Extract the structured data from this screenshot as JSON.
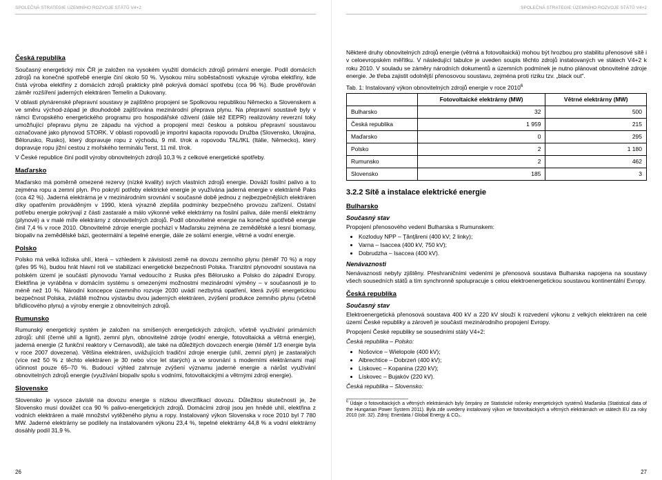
{
  "doc_header": "SPOLEČNÁ STRATEGIE ÚZEMNÍHO ROZVOJE STÁTŮ V4+2",
  "left": {
    "pagenum": "26",
    "cr": {
      "title": "Česká republika",
      "p1": "Současný energetický mix ČR je založen na vysokém využití domácích zdrojů primární energie. Podíl domácích zdrojů na konečné spotřebě energie činí okolo 50 %. Vysokou míru soběstačnosti vykazuje výroba elektřiny, kde čistá výroba elektřiny z domácích zdrojů prakticky plně pokrývá domácí spotřebu (cca 96 %). Bude prověřován záměr rozšíření jaderných elektráren Temelín a Dukovany.",
      "p2": "V oblasti plynárenské přepravní soustavy je zajištěno propojení se Spolkovou republikou Německo a Slovenskem a ve směru východ-západ je dlouhodobě zajišťována mezinárodní přeprava plynu. Na přepravní soustavě byly v rámci Evropského energetického programu pro hospodářské oživení (dále též EEPR) realizovány reverzní toky umožňující přepravu plynu ze západu na východ a propojení mezi českou a polskou přepravní soustavou označované jako plynovod STORK. V oblasti ropovodů je importní kapacita ropovodu Družba (Slovensko, Ukrajina, Bělorusko, Rusko), který dopravuje ropu z východu, 9 mil. t/rok a ropovodu TAL/IKL (Itálie, Německo), který dopravuje ropu jižní cestou z mořského terminálu Terst, 11 mil. t/rok.",
      "p3": "V České republice činí podíl výroby obnovitelných zdrojů 10,3 % z celkové energetické spotřeby."
    },
    "hu": {
      "title": "Maďarsko",
      "p1": "Maďarsko má poměrně omezené rezervy (nízké kvality) svých vlastních zdrojů energie. Dováží fosilní palivo a to zejména ropu a zemní plyn. Pro pokrytí potřeby elektrické energie je využívána jaderná energie v elektrárně Paks (cca 42 %). Jaderná elektrárna je v mezinárodním srovnání v současné době jednou z nejbezpečnějších elektráren díky opatřením prováděným v 1990, která výrazně zlepšila podmínky bezpečného provozu zařízení. Ostatní potřebu energie pokrývají z části zastaralé a málo výkonné velké elektrárny na fosilní paliva, dále menší elektrárny (plynové) a v malé míře elektrárny z obnovitelných zdrojů. Podíl obnovitelné energie na konečné spotřebě energie činil 7,4 % v roce 2010. Obnovitelné zdroje energie pochází v Maďarsku zejména ze zemědělské a lesní biomasy, biopaliv na zemědělské bázi, geotermální a tepelné energie, dále ze solární energie, větrné a vodní energie."
    },
    "pl": {
      "title": "Polsko",
      "p1": "Polsko má velká ložiska uhlí, která – vzhledem k závislosti země na dovozu zemního plynu (téměř 70 %) a ropy (přes 95 %), budou hrát hlavní roli ve stabilizaci energetické bezpečnosti Polska. Tranzitní plynovodní soustava na polském území je součástí plynovodu Yamal vedoucího z Ruska přes Bělorusko a Polsko do západní Evropy. Elektřina je vyráběna v domácím systému s omezenými možnostmi mezinárodní výměny – v současnosti je to méně než 10 %. Národní koncepce územního rozvoje 2030 uvádí nezbytná opatření, která zvýší energetickou bezpečnost Polska, zvláště možnou výstavbu dvou jaderných elektráren, zvýšení produkce zemního plynu (včetně břidlicového plynu) a výroby energie z obnovitelných zdrojů."
    },
    "ro": {
      "title": "Rumunsko",
      "p1": "Rumunský energetický systém je založen na smíšených energetických zdrojích, včetně využívání primárních zdrojů: uhlí (černé uhlí a lignit), zemní plyn, obnovitelné zdroje (vodní energie, fotovoltaická a větrná energie), jaderná energie (2 funkční reaktory v Cernavodă), ale také na důležitých dovozech energie (téměř 1/3 energie byla v roce 2007 dovezena). Většina elektráren, uvážujících tradiční zdroje energie (uhlí, zemní plyn) je zastaralých (více než 50 % z těchto elektráren je 30 nebo více let starých) a ve srovnání s moderními elektrárnami mají účinnost pouze 65–70 %. Budoucí výhled zahrnuje zvýšení významu jaderné energie a nárůst využívání obnovitelných zdrojů energie (využívání biopaliv spolu s vodními, fotovoltaickými a větrnými zdroji energie)."
    },
    "sk": {
      "title": "Slovensko",
      "p1": "Slovensko je vysoce závislé na dovozu energie s nízkou diverzifikací dovozu. Důležitou skutečností je, že Slovensko musí dovážet cca 90 % palivo-energetických zdrojů. Domácími zdroji jsou jen hnědé uhlí, elektřina z vodních elektráren a malé množství vytěženého plynu a ropy. Instalovaný výkon Slovenska v roce 2010 byl 7 780 MW. Jaderné elektrárny se podílely na instalovaném výkonu 23,4 %, tepelné elektrárny 44,8 % a vodní elektrárny dosáhly podíl 31,9 %."
    }
  },
  "right": {
    "pagenum": "27",
    "intro": "Některé druhy obnovitelných zdrojů energie (větrná a fotovoltaická) mohou být hrozbou pro stabilitu přenosové sítě i v celoevropském měřítku. V následující tabulce je uveden soupis těchto zdrojů instalovaných ve státech V4+2 k roku 2010. V souladu se záměry národních dokumentů a územních podmínek je nutno plánovat obnovitelné zdroje energie. Je třeba zajistit odolnější přenosovou soustavu, zejména proti riziku tzv. „black out\".",
    "tab_caption_pre": "Tab. 1: Instalovaný výkon obnovitelných zdrojů energie v roce 2010",
    "tab_caption_sup": "6",
    "table": {
      "col_pv": "Fotovoltaické elektrárny (MW)",
      "col_wind": "Větrné elektrárny (MW)",
      "rows": [
        {
          "country": "Bulharsko",
          "pv": "32",
          "wind": "500"
        },
        {
          "country": "Česká republika",
          "pv": "1 959",
          "wind": "215"
        },
        {
          "country": "Maďarsko",
          "pv": "0",
          "wind": "295"
        },
        {
          "country": "Polsko",
          "pv": "2",
          "wind": "1 180"
        },
        {
          "country": "Rumunsko",
          "pv": "2",
          "wind": "462"
        },
        {
          "country": "Slovensko",
          "pv": "185",
          "wind": "3"
        }
      ]
    },
    "h32": "3.2.2  Sítě a instalace elektrické energie",
    "bg": {
      "title": "Bulharsko",
      "state": "Současný stav",
      "p1": "Propojení přenosového vedení Bulharska s Rumunskem:",
      "bullets": [
        "Kozloduy NPP – Ţânţăreni (400 kV; 2 linky);",
        "Varna – Isaccea (400 kV, 750 kV);",
        "Dobrudzha – Isaccea (400 kV)."
      ],
      "nenav_title": "Nenávaznosti",
      "p2": "Nenávaznosti nebyly zjištěny. Přeshraničními vedeními je přenosová soustava Bulharska napojena na soustavy všech sousedních států a tím synchronně spolupracuje s celou elektroenergetickou soustavou kontinentální Evropy."
    },
    "cr2": {
      "title": "Česká republika",
      "state": "Současný stav",
      "p1": "Elektroenergetická přenosová soustava 400 kV a 220 kV slouží k rozvedení výkonu z velkých elektráren na celé území České republiky a zároveň je součástí mezinárodního propojení Evropy.",
      "p2": "Propojení České republiky se sousedními státy V4+2:",
      "it1": "Česká republika – Polsko:",
      "bullets1": [
        "Nošovice – Wielopole (400 kV);",
        "Albrechtice – Dobrzeń (400 kV);",
        "Lískovec – Kopanina (220 kV);",
        "Lískovec – Bujakóv (220 kV)."
      ],
      "it2": "Česká republika – Slovensko:"
    },
    "footnote_sup": "6",
    "footnote": "Údaje o fotovoltaických a větrných elektrárnách byly čerpány ze Statistické ročenky energetických systémů Maďarska (Statistical data of the Hungarian Power System 2011). Byla zde uvedeny instalovaný výkon ve fotovoltaických a větrných elektrárnách ve státech EU za roky 2010 (str. 32). Zdroj: Enerdata / Global Energy & CO₂."
  }
}
